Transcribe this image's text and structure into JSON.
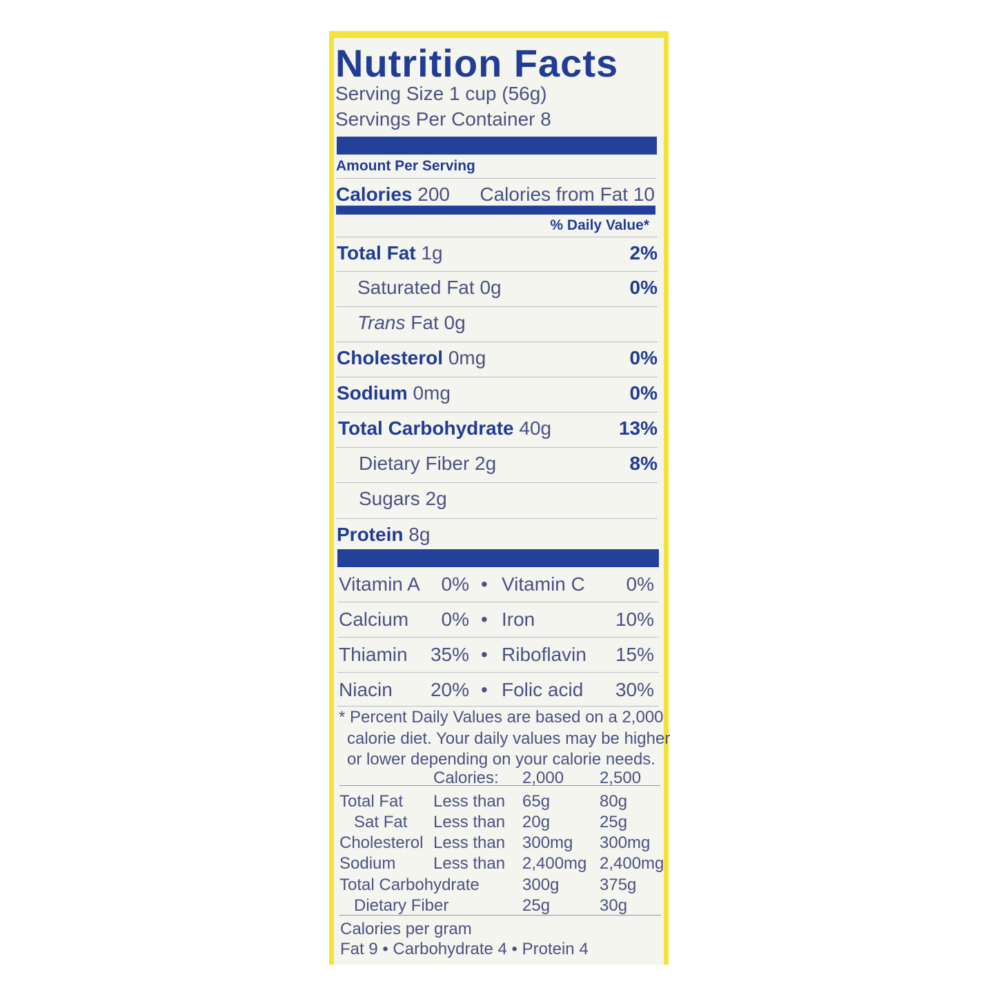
{
  "title": "Nutrition Facts",
  "serving_size": "Serving Size 1 cup (56g)",
  "servings_per_container": "Servings Per Container  8",
  "amount_per_serving": "Amount Per Serving",
  "calories": {
    "label": "Calories",
    "value": "200",
    "from_fat": "Calories from Fat 10"
  },
  "daily_value_header": "% Daily Value*",
  "nutrients": [
    {
      "label": "Total Fat",
      "amount": "1g",
      "dv": "2%"
    },
    {
      "label": "Saturated Fat",
      "amount": "0g",
      "dv": "0%"
    },
    {
      "label": "Trans",
      "label2": "Fat 0g",
      "dv": ""
    },
    {
      "label": "Cholesterol",
      "amount": "0mg",
      "dv": "0%"
    },
    {
      "label": "Sodium",
      "amount": "0mg",
      "dv": "0%"
    },
    {
      "label": "Total Carbohydrate",
      "amount": "40g",
      "dv": "13%"
    },
    {
      "label": "Dietary Fiber",
      "amount": "2g",
      "dv": "8%"
    },
    {
      "label": "Sugars",
      "amount": "2g",
      "dv": ""
    },
    {
      "label": "Protein",
      "amount": "8g",
      "dv": ""
    }
  ],
  "vitamins": [
    {
      "a": "Vitamin A",
      "ap": "0%",
      "b": "Vitamin C",
      "bp": "0%"
    },
    {
      "a": "Calcium",
      "ap": "0%",
      "b": "Iron",
      "bp": "10%"
    },
    {
      "a": "Thiamin",
      "ap": "35%",
      "b": "Riboflavin",
      "bp": "15%"
    },
    {
      "a": "Niacin",
      "ap": "20%",
      "b": "Folic acid",
      "bp": "30%"
    }
  ],
  "bullet": "•",
  "footnote": [
    "* Percent Daily Values are based on a 2,000",
    "calorie diet. Your daily values may be higher",
    "or lower depending on your calorie needs."
  ],
  "dv_table": {
    "header": [
      "Calories:",
      "2,000",
      "2,500"
    ],
    "rows": [
      [
        "Total Fat",
        "Less than",
        "65g",
        "80g"
      ],
      [
        "Sat Fat",
        "Less than",
        "20g",
        "25g"
      ],
      [
        "Cholesterol",
        "Less than",
        "300mg",
        "300mg"
      ],
      [
        "Sodium",
        "Less than",
        "2,400mg",
        "2,400mg"
      ],
      [
        "Total Carbohydrate",
        "",
        "300g",
        "375g"
      ],
      [
        "Dietary Fiber",
        "",
        "25g",
        "30g"
      ]
    ]
  },
  "calories_per_gram": "Calories per gram",
  "calories_per_gram_values": "Fat 9 • Carbohydrate 4 • Protein 4",
  "colors": {
    "blue": "#213c94",
    "text": "#4a5182",
    "border": "#f3e23a",
    "background": "#f4f5ef"
  }
}
